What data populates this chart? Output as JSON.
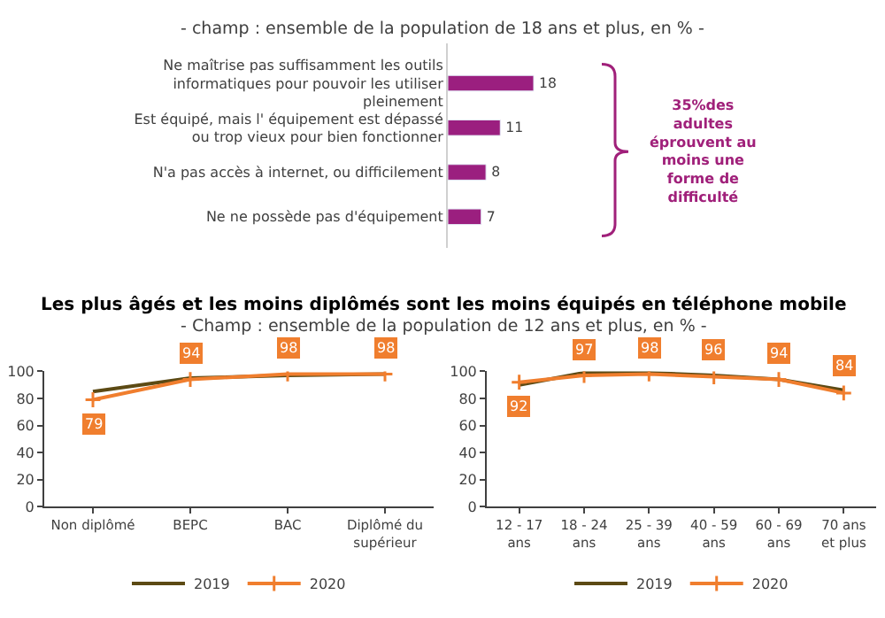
{
  "chart_data": [
    {
      "type": "bar",
      "orientation": "horizontal",
      "subtitle": "- champ : ensemble de la population de 18 ans et plus, en % -",
      "categories": [
        "Ne maîtrise pas suffisamment les outils informatiques pour pouvoir les utiliser pleinement",
        "Est équipé, mais l' équipement est dépassé ou trop vieux pour bien fonctionner",
        "N'a pas accès à internet, ou difficilement",
        "Ne ne possède pas d'équipement"
      ],
      "values": [
        18,
        11,
        8,
        7
      ],
      "color": "#9b1f7f",
      "data_labels": true,
      "annotations": [
        "35%des adultes éprouvent au moins une forme de difficulté"
      ]
    },
    {
      "type": "line",
      "title": "Les plus âgés et les moins diplômés sont les moins équipés en téléphone mobile",
      "subtitle": "- Champ : ensemble de la population de 12 ans et plus, en % -",
      "categories": [
        "Non diplômé",
        "BEPC",
        "BAC",
        "Diplômé du supérieur"
      ],
      "series": [
        {
          "name": "2019",
          "color": "#5c4a14",
          "values": [
            85,
            95,
            97,
            98
          ]
        },
        {
          "name": "2020",
          "color": "#f07e2e",
          "values": [
            79,
            94,
            98,
            98
          ],
          "value_labels": [
            "79",
            "94",
            "98",
            "98"
          ],
          "marker": "cross"
        }
      ],
      "ylim": [
        0,
        100
      ],
      "yticks": [
        0,
        20,
        40,
        60,
        80,
        100
      ],
      "legend": "bottom"
    },
    {
      "type": "line",
      "categories": [
        "12 - 17 ans",
        "18 - 24 ans",
        "25 - 39 ans",
        "40 - 59 ans",
        "60 - 69 ans",
        "70 ans et plus"
      ],
      "series": [
        {
          "name": "2019",
          "color": "#5c4a14",
          "values": [
            90,
            99,
            99,
            97,
            94,
            86
          ]
        },
        {
          "name": "2020",
          "color": "#f07e2e",
          "values": [
            92,
            97,
            98,
            96,
            94,
            84
          ],
          "value_labels": [
            "92",
            "97",
            "98",
            "96",
            "94",
            "84"
          ],
          "marker": "cross"
        }
      ],
      "ylim": [
        0,
        100
      ],
      "yticks": [
        0,
        20,
        40,
        60,
        80,
        100
      ],
      "legend": "bottom"
    }
  ]
}
